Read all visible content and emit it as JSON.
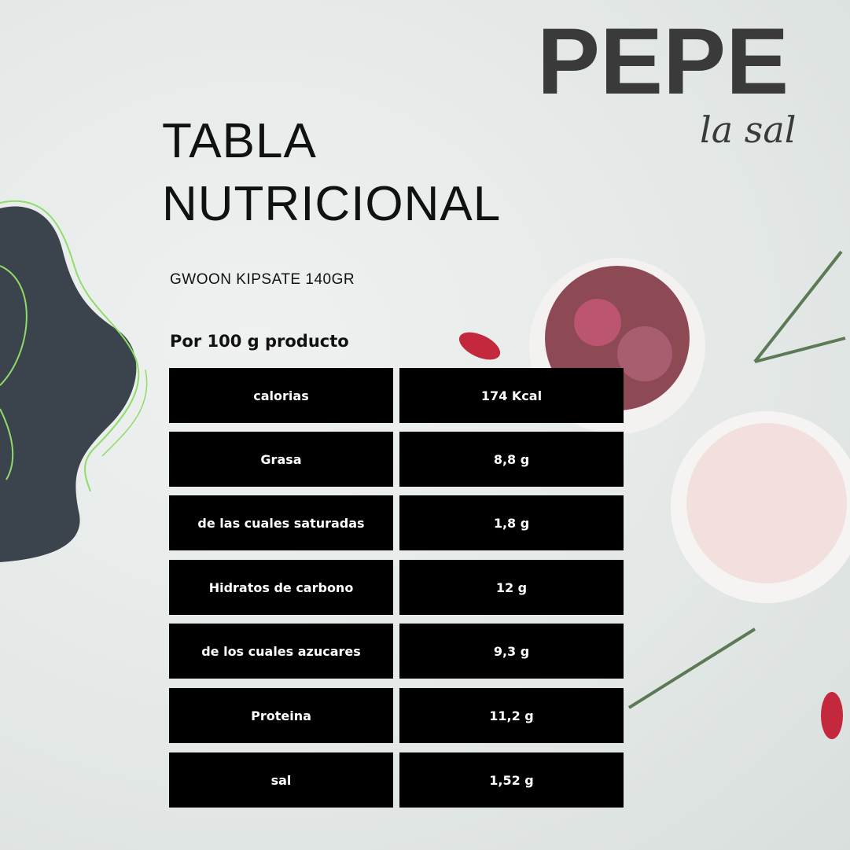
{
  "brand": {
    "name": "PEPE",
    "tagline": "la sal"
  },
  "title": {
    "line1": "TABLA",
    "line2": "NUTRICIONAL"
  },
  "product": "GWOON KIPSATE 140GR",
  "serving": "Por 100 g producto",
  "table": [
    {
      "label": "calorias",
      "value": "174 Kcal"
    },
    {
      "label": "Grasa",
      "value": "8,8 g"
    },
    {
      "label": "de las cuales saturadas",
      "value": "1,8 g"
    },
    {
      "label": "Hidratos de carbono",
      "value": "12 g"
    },
    {
      "label": "de los cuales azucares",
      "value": "9,3 g"
    },
    {
      "label": "Proteina",
      "value": "11,2 g"
    },
    {
      "label": "sal",
      "value": "1,52 g"
    }
  ],
  "colors": {
    "cell": "#000000",
    "blob": "#3b434c",
    "accent_line": "#8fdc6a",
    "logo": "#3a3a3a"
  }
}
